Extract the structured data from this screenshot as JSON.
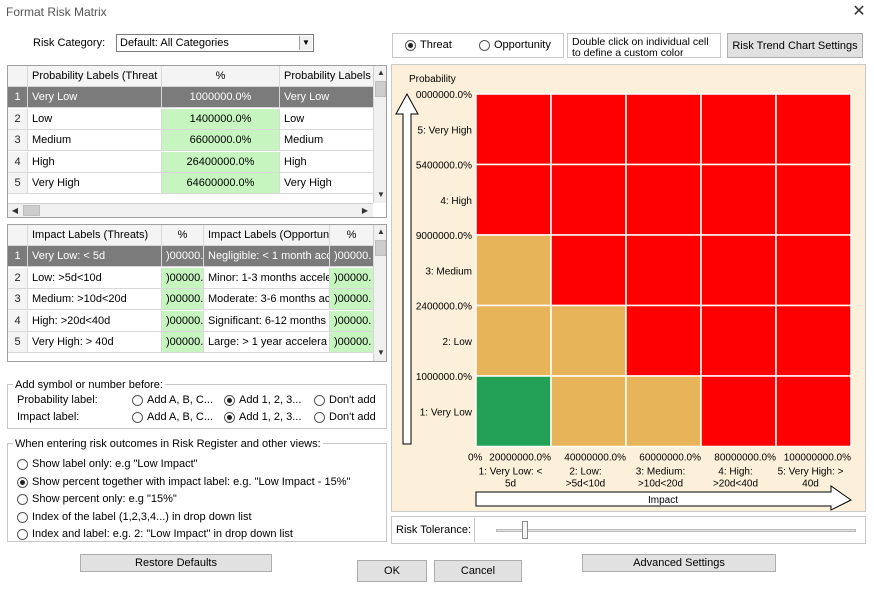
{
  "window": {
    "title": "Format Risk Matrix",
    "close_glyph": "✕"
  },
  "risk_category": {
    "label": "Risk Category:",
    "value": "Default: All Categories"
  },
  "prob_table": {
    "headers": [
      "Probability Labels (Threat",
      "%",
      "Probability Labels (C"
    ],
    "rows": [
      {
        "n": "1",
        "label": "Very Low",
        "pct": "1000000.0%",
        "opp": "Very Low"
      },
      {
        "n": "2",
        "label": "Low",
        "pct": "1400000.0%",
        "opp": "Low"
      },
      {
        "n": "3",
        "label": "Medium",
        "pct": "6600000.0%",
        "opp": "Medium"
      },
      {
        "n": "4",
        "label": "High",
        "pct": "26400000.0%",
        "opp": "High"
      },
      {
        "n": "5",
        "label": "Very High",
        "pct": "64600000.0%",
        "opp": "Very High"
      }
    ]
  },
  "impact_table": {
    "headers": [
      "Impact Labels (Threats)",
      "%",
      "Impact Labels (Opportuni",
      "%"
    ],
    "rows": [
      {
        "n": "1",
        "label": "Very Low: < 5d",
        "pct": ")00000.",
        "opp": "Negligible: < 1 month acc",
        "opct": ")00000."
      },
      {
        "n": "2",
        "label": "Low: >5d<10d",
        "pct": ")00000.",
        "opp": "Minor: 1-3 months accele",
        "opct": ")00000."
      },
      {
        "n": "3",
        "label": "Medium: >10d<20d",
        "pct": ")00000.",
        "opp": "Moderate: 3-6 months ac",
        "opct": ")00000."
      },
      {
        "n": "4",
        "label": "High: >20d<40d",
        "pct": ")00000.",
        "opp": "Significant: 6-12 months",
        "opct": ")00000."
      },
      {
        "n": "5",
        "label": "Very High: > 40d",
        "pct": ")00000.",
        "opp": "Large: > 1 year accelera",
        "opct": ")00000."
      }
    ]
  },
  "symbol_group": {
    "title": "Add symbol or number before:",
    "rows": [
      {
        "label": "Probability label:",
        "opt1": "Add A, B, C...",
        "opt2": "Add 1, 2, 3...",
        "opt3": "Don't add",
        "selected": 2
      },
      {
        "label": "Impact label:",
        "opt1": "Add A, B, C...",
        "opt2": "Add 1, 2, 3...",
        "opt3": "Don't add",
        "selected": 2
      }
    ]
  },
  "outcome_group": {
    "title": "When entering risk outcomes in Risk Register and other views:",
    "options": [
      "Show label only: e.g \"Low Impact\"",
      "Show percent together with impact label: e.g. \"Low Impact - 15%\"",
      "Show percent only: e.g \"15%\"",
      "Index of the label (1,2,3,4...) in drop down list",
      "Index and label: e.g. 2: \"Low Impact\" in drop down list"
    ],
    "selected": 1
  },
  "mode": {
    "threat": "Threat",
    "opportunity": "Opportunity",
    "selected": "threat"
  },
  "hint": {
    "line1": "Double click on individual cell",
    "line2": "to define a custom color"
  },
  "trend_button": "Risk Trend Chart Settings",
  "risk_tolerance": {
    "label": "Risk Tolerance:",
    "value": 0.08
  },
  "buttons": {
    "restore": "Restore Defaults",
    "ok": "OK",
    "cancel": "Cancel",
    "advanced": "Advanced Settings"
  },
  "colors": {
    "red": "#ff0000",
    "amber": "#e8b45a",
    "green": "#22a055",
    "chart_bg": "#fdf0da"
  },
  "matrix": {
    "ylabel": "Probability",
    "xlabel": "Impact",
    "prob_row_labels": [
      "5: Very High",
      "4: High",
      "3: Medium",
      "2: Low",
      "1: Very Low"
    ],
    "prob_tick_labels": [
      "0000000.0%",
      "5400000.0%",
      "9000000.0%",
      "2400000.0%",
      "1000000.0%"
    ],
    "impact_tick_labels": [
      "0%",
      "20000000.0%",
      "40000000.0%",
      "60000000.0%",
      "80000000.0%",
      "100000000.0%"
    ],
    "impact_col_labels": [
      [
        "1: Very Low: <",
        "5d"
      ],
      [
        "2: Low:",
        ">5d<10d"
      ],
      [
        "3: Medium:",
        ">10d<20d"
      ],
      [
        "4: High:",
        ">20d<40d"
      ],
      [
        "5: Very High: >",
        "40d"
      ]
    ],
    "cells": [
      [
        "red",
        "red",
        "red",
        "red",
        "red"
      ],
      [
        "red",
        "red",
        "red",
        "red",
        "red"
      ],
      [
        "amber",
        "red",
        "red",
        "red",
        "red"
      ],
      [
        "amber",
        "amber",
        "red",
        "red",
        "red"
      ],
      [
        "green",
        "amber",
        "amber",
        "red",
        "red"
      ]
    ]
  }
}
